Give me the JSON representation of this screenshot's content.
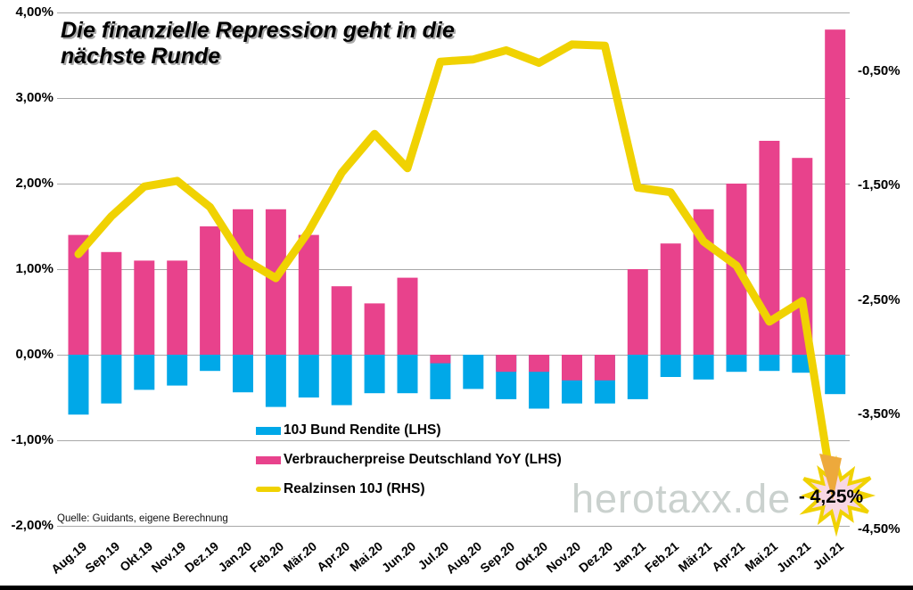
{
  "title": {
    "line1": "Die finanzielle Repression geht in die",
    "line2": "nächste Runde"
  },
  "source": "Quelle: Guidants, eigene Berechnung",
  "watermark": "herotaxx.de",
  "annotation": {
    "text": "- 4,25%"
  },
  "colors": {
    "bund_blue": "#00a8e8",
    "cpi_pink": "#e8428c",
    "real_yellow": "#f0d202",
    "grid_gray": "#a8a8a8",
    "star_fill": "#f8d7e4",
    "arrow_head": "#eda93c",
    "watermark_gray": "#cad1ce"
  },
  "legend": {
    "items": [
      {
        "label": "10J Bund Rendite (LHS)",
        "color": "#00a8e8",
        "shape": "rect"
      },
      {
        "label": "Verbraucherpreise Deutschland YoY (LHS)",
        "color": "#e8428c",
        "shape": "rect"
      },
      {
        "label": "Realzinsen 10J (RHS)",
        "color": "#f0d202",
        "shape": "line"
      }
    ]
  },
  "chart_data": {
    "type": "bar",
    "subtype": "combo-bar-line-dual-axis",
    "title": "Die finanzielle Repression geht in die nächste Runde",
    "grid": true,
    "legend_position": "inside-bottom-center",
    "categories": [
      "Aug.19",
      "Sep.19",
      "Okt.19",
      "Nov.19",
      "Dez.19",
      "Jan.20",
      "Feb.20",
      "Mär.20",
      "Apr.20",
      "Mai.20",
      "Jun.20",
      "Jul.20",
      "Aug.20",
      "Sep.20",
      "Okt.20",
      "Nov.20",
      "Dez.20",
      "Jan.21",
      "Feb.21",
      "Mär.21",
      "Apr.21",
      "Mai.21",
      "Jun.21",
      "Jul.21"
    ],
    "series": [
      {
        "name": "10J Bund Rendite (LHS)",
        "type": "bar",
        "axis": "left",
        "color": "#00a8e8",
        "values": [
          -0.7,
          -0.57,
          -0.41,
          -0.36,
          -0.19,
          -0.44,
          -0.61,
          -0.5,
          -0.59,
          -0.45,
          -0.45,
          -0.52,
          -0.4,
          -0.52,
          -0.63,
          -0.57,
          -0.57,
          -0.52,
          -0.26,
          -0.29,
          -0.2,
          -0.19,
          -0.21,
          -0.46
        ]
      },
      {
        "name": "Verbraucherpreise Deutschland YoY (LHS)",
        "type": "bar",
        "axis": "left",
        "color": "#e8428c",
        "values": [
          1.4,
          1.2,
          1.1,
          1.1,
          1.5,
          1.7,
          1.7,
          1.4,
          0.8,
          0.6,
          0.9,
          -0.1,
          0.0,
          -0.2,
          -0.2,
          -0.3,
          -0.3,
          1.0,
          1.3,
          1.7,
          2.0,
          2.5,
          2.3,
          3.8
        ]
      },
      {
        "name": "Realzinsen 10J (RHS)",
        "type": "line",
        "axis": "right",
        "color": "#f0d202",
        "values": [
          -2.1,
          -1.77,
          -1.51,
          -1.46,
          -1.69,
          -2.14,
          -2.31,
          -1.9,
          -1.39,
          -1.05,
          -1.35,
          -0.42,
          -0.4,
          -0.32,
          -0.43,
          -0.27,
          -0.28,
          -1.52,
          -1.56,
          -1.99,
          -2.2,
          -2.69,
          -2.51,
          -4.25
        ]
      }
    ],
    "left_axis": {
      "ticks": [
        4,
        3,
        2,
        1,
        0,
        -1,
        -2
      ],
      "labels": [
        "4,00%",
        "3,00%",
        "2,00%",
        "1,00%",
        "0,00%",
        "-1,00%",
        "-2,00%"
      ],
      "range": [
        -2.0,
        4.0
      ]
    },
    "right_axis": {
      "ticks": [
        -0.5,
        -1.5,
        -2.5,
        -3.5,
        -4.5
      ],
      "labels": [
        "-0,50%",
        "-1,50%",
        "-2,50%",
        "-3,50%",
        "-4,50%"
      ],
      "range": [
        -4.47,
        0.05
      ]
    },
    "annotation": {
      "text": "- 4,25%",
      "target_category": "Jul.21",
      "target_series": "Realzinsen 10J (RHS)",
      "shape": "starburst-arrow"
    }
  }
}
